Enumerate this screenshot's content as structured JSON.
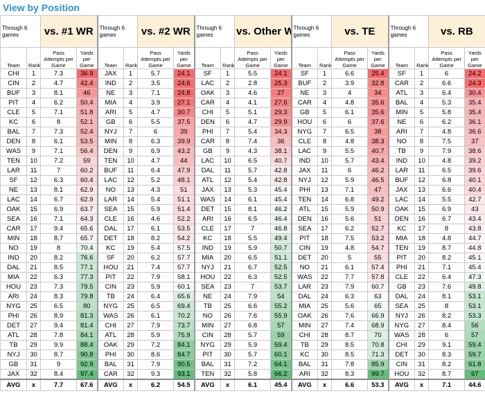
{
  "header": {
    "title": "View by Position"
  },
  "sections": [
    {
      "through": "Through 6 games",
      "title": "vs. #1 WR",
      "columns": [
        "Team",
        "Rank",
        "Pass Attempts per Game",
        "Yards per Game"
      ],
      "rows": [
        [
          "CHI",
          1,
          7.3,
          36.9
        ],
        [
          "CIN",
          2,
          4.7,
          42.4
        ],
        [
          "BUF",
          3,
          8.1,
          46
        ],
        [
          "PIT",
          4,
          6.2,
          50.4
        ],
        [
          "CLE",
          5,
          7.1,
          51.8
        ],
        [
          "KC",
          6,
          8,
          52.1
        ],
        [
          "BAL",
          7,
          7.3,
          52.4
        ],
        [
          "DEN",
          8,
          6.1,
          53.5
        ],
        [
          "WAS",
          9,
          7.1,
          56.4
        ],
        [
          "TEN",
          10,
          7.2,
          59
        ],
        [
          "LAR",
          11,
          7,
          60.2
        ],
        [
          "SF",
          12,
          6.3,
          60.4
        ],
        [
          "NE",
          13,
          8.1,
          62.9
        ],
        [
          "LAC",
          14,
          6.7,
          62.9
        ],
        [
          "OAK",
          15,
          6.9,
          63.7
        ],
        [
          "SEA",
          16,
          7.1,
          64.3
        ],
        [
          "CAR",
          17,
          9.4,
          65.6
        ],
        [
          "MIN",
          18,
          8.7,
          65.7
        ],
        [
          "NO",
          19,
          8,
          70.4
        ],
        [
          "IND",
          20,
          8.2,
          76.6
        ],
        [
          "DAL",
          21,
          8.5,
          77.1
        ],
        [
          "MIA",
          22,
          6.3,
          77.3
        ],
        [
          "HOU",
          23,
          7.3,
          79.5
        ],
        [
          "ARI",
          24,
          8.3,
          79.8
        ],
        [
          "NYG",
          25,
          6.5,
          80
        ],
        [
          "PHI",
          26,
          8.9,
          81.3
        ],
        [
          "DET",
          27,
          9.4,
          81.4
        ],
        [
          "ATL",
          28,
          7.8,
          84.1
        ],
        [
          "TB",
          29,
          9.9,
          88.4
        ],
        [
          "NYJ",
          30,
          8.7,
          90.8
        ],
        [
          "GB",
          31,
          9,
          92.9
        ],
        [
          "JAX",
          32,
          8.4,
          97.4
        ]
      ],
      "avg": [
        "AVG",
        "x",
        7.7,
        67.6
      ]
    },
    {
      "through": "Through 6 games",
      "title": "vs. #2 WR",
      "columns": [
        "Team",
        "Rank",
        "Pass Attempts per Game",
        "Yards per Game"
      ],
      "rows": [
        [
          "JAX",
          1,
          5.7,
          24.1
        ],
        [
          "IND",
          2,
          3.5,
          24.6
        ],
        [
          "NE",
          3,
          7.1,
          24.8
        ],
        [
          "MIA",
          4,
          3.9,
          27.1
        ],
        [
          "ARI",
          5,
          4.7,
          30.7
        ],
        [
          "GB",
          6,
          5.5,
          37.5
        ],
        [
          "NYJ",
          7,
          6,
          39
        ],
        [
          "MIN",
          8,
          6.3,
          39.9
        ],
        [
          "DEN",
          9,
          6.9,
          43.2
        ],
        [
          "TEN",
          10,
          4.7,
          44
        ],
        [
          "BUF",
          11,
          6.4,
          47.9
        ],
        [
          "LAC",
          12,
          5.2,
          48.1
        ],
        [
          "NO",
          13,
          4.3,
          51
        ],
        [
          "LAR",
          14,
          5.4,
          51.1
        ],
        [
          "SEA",
          15,
          5.9,
          51.4
        ],
        [
          "CLE",
          16,
          4.6,
          52.2
        ],
        [
          "DAL",
          17,
          6.1,
          53.5
        ],
        [
          "DET",
          18,
          8.2,
          54.2
        ],
        [
          "KC",
          19,
          5.4,
          57.5
        ],
        [
          "SF",
          20,
          6.2,
          57.7
        ],
        [
          "HOU",
          21,
          7.4,
          57.7
        ],
        [
          "PIT",
          22,
          7.9,
          58.1
        ],
        [
          "CIN",
          23,
          5.9,
          60.1
        ],
        [
          "TB",
          24,
          6.4,
          65.6
        ],
        [
          "NYG",
          25,
          6.5,
          69.4
        ],
        [
          "WAS",
          26,
          6.1,
          70.2
        ],
        [
          "CHI",
          27,
          7.9,
          73.7
        ],
        [
          "ATL",
          28,
          5.9,
          75.9
        ],
        [
          "OAK",
          29,
          7.2,
          84.1
        ],
        [
          "PHI",
          30,
          8.6,
          84.7
        ],
        [
          "BAL",
          31,
          7.9,
          90.5
        ],
        [
          "CAR",
          32,
          9.3,
          93.1
        ]
      ],
      "avg": [
        "AVG",
        "x",
        6.2,
        54.5
      ]
    },
    {
      "through": "Through 6 games",
      "title": "vs. Other WR",
      "columns": [
        "Team",
        "Rank",
        "Pass Attempts per Game",
        "Yards per Game"
      ],
      "rows": [
        [
          "SF",
          1,
          5.5,
          24.1
        ],
        [
          "LAC",
          2,
          2.8,
          25.3
        ],
        [
          "OAK",
          3,
          4.6,
          27
        ],
        [
          "CAR",
          4,
          4.1,
          27.6
        ],
        [
          "CHI",
          5,
          5.1,
          29.3
        ],
        [
          "DEN",
          6,
          4.7,
          29.9
        ],
        [
          "PHI",
          7,
          5.4,
          34.3
        ],
        [
          "CAR",
          8,
          7.4,
          36
        ],
        [
          "GB",
          9,
          4.3,
          38.1
        ],
        [
          "LAC",
          10,
          6.5,
          40.7
        ],
        [
          "DAL",
          11,
          5.7,
          42.8
        ],
        [
          "ATL",
          12,
          5.4,
          42.8
        ],
        [
          "JAX",
          13,
          5.3,
          45.4
        ],
        [
          "WAS",
          14,
          6.1,
          45.4
        ],
        [
          "DET",
          15,
          8.1,
          46.2
        ],
        [
          "ARI",
          16,
          6.5,
          46.4
        ],
        [
          "CLE",
          17,
          7,
          46.8
        ],
        [
          "KC",
          18,
          5.5,
          49.4
        ],
        [
          "IND",
          19,
          5.9,
          50.7
        ],
        [
          "MIA",
          20,
          6.5,
          51.1
        ],
        [
          "NYJ",
          21,
          6.7,
          52.5
        ],
        [
          "HOU",
          22,
          6.3,
          52.5
        ],
        [
          "SEA",
          23,
          7,
          53.7
        ],
        [
          "NE",
          24,
          7.9,
          54
        ],
        [
          "TB",
          25,
          6.6,
          55.2
        ],
        [
          "NO",
          26,
          7.6,
          55.9
        ],
        [
          "MIN",
          27,
          6.8,
          57
        ],
        [
          "CIN",
          28,
          5.7,
          59
        ],
        [
          "NYG",
          29,
          5.9,
          59.4
        ],
        [
          "PIT",
          30,
          5.7,
          60.1
        ],
        [
          "BAL",
          31,
          7.2,
          64.1
        ],
        [
          "TEN",
          32,
          5.8,
          66.2
        ]
      ],
      "avg": [
        "AVG",
        "x",
        6.1,
        45.4
      ]
    },
    {
      "through": "Through 6 games",
      "title": "vs. TE",
      "columns": [
        "Team",
        "Rank",
        "Pass Attempts per Game",
        "Yards per Game"
      ],
      "rows": [
        [
          "SF",
          1,
          6.6,
          25.4
        ],
        [
          "BUF",
          2,
          3.9,
          32.8
        ],
        [
          "NE",
          3,
          4,
          34
        ],
        [
          "CAR",
          4,
          4.8,
          35.6
        ],
        [
          "GB",
          5,
          6.1,
          35.6
        ],
        [
          "HOU",
          6,
          6,
          37.6
        ],
        [
          "NYG",
          7,
          6.5,
          38
        ],
        [
          "CLE",
          8,
          4.8,
          38.3
        ],
        [
          "LAC",
          9,
          5.5,
          40.7
        ],
        [
          "IND",
          10,
          5.7,
          43.4
        ],
        [
          "JAX",
          11,
          6,
          46.2
        ],
        [
          "NYJ",
          12,
          5.9,
          46.5
        ],
        [
          "PHI",
          13,
          7.1,
          47
        ],
        [
          "TEN",
          14,
          6.8,
          49.2
        ],
        [
          "ATL",
          15,
          5.9,
          50.9
        ],
        [
          "DEN",
          16,
          5.6,
          51
        ],
        [
          "SEA",
          17,
          6.2,
          52.7
        ],
        [
          "PIT",
          18,
          7.5,
          53.2
        ],
        [
          "CIN",
          19,
          4.8,
          54.7
        ],
        [
          "DET",
          20,
          5,
          55
        ],
        [
          "NO",
          21,
          6.1,
          57.4
        ],
        [
          "WAS",
          22,
          7.7,
          57.8
        ],
        [
          "LAR",
          23,
          7.9,
          60.7
        ],
        [
          "DAL",
          24,
          6.3,
          63
        ],
        [
          "MIA",
          25,
          5.6,
          65
        ],
        [
          "OAK",
          26,
          7.6,
          66.9
        ],
        [
          "MIN",
          27,
          7.4,
          68.9
        ],
        [
          "CHI",
          28,
          8.7,
          70
        ],
        [
          "TB",
          29,
          8.5,
          70.8
        ],
        [
          "KC",
          30,
          8.5,
          71.3
        ],
        [
          "BAL",
          31,
          7.8,
          85.9
        ],
        [
          "ARI",
          32,
          8.3,
          99.7
        ]
      ],
      "avg": [
        "AVG",
        "x",
        6.6,
        53.3
      ]
    },
    {
      "through": "Through 6 games",
      "title": "vs. RB",
      "columns": [
        "Team",
        "Rank",
        "Pass Attempts per Game",
        "Yards per Game"
      ],
      "rows": [
        [
          "SF",
          1,
          6,
          24.2
        ],
        [
          "CAR",
          2,
          6.6,
          24.3
        ],
        [
          "ATL",
          3,
          6.4,
          30.4
        ],
        [
          "BAL",
          4,
          5.3,
          35.4
        ],
        [
          "MIN",
          5,
          5.8,
          35.4
        ],
        [
          "NE",
          6,
          6.2,
          36.1
        ],
        [
          "ARI",
          7,
          4.8,
          36.6
        ],
        [
          "NO",
          8,
          7.5,
          37
        ],
        [
          "TB",
          9,
          7.9,
          38.6
        ],
        [
          "IND",
          10,
          4.8,
          39.2
        ],
        [
          "LAR",
          11,
          6.5,
          39.6
        ],
        [
          "BUF",
          12,
          6.8,
          40.1
        ],
        [
          "JAX",
          13,
          6.6,
          40.4
        ],
        [
          "LAC",
          14,
          5.5,
          42.7
        ],
        [
          "OAK",
          15,
          6.9,
          43
        ],
        [
          "DEN",
          16,
          6.7,
          43.4
        ],
        [
          "KC",
          17,
          8,
          43.8
        ],
        [
          "MIA",
          18,
          4.8,
          44.7
        ],
        [
          "TEN",
          19,
          8.7,
          44.8
        ],
        [
          "PIT",
          20,
          8.2,
          45.1
        ],
        [
          "PHI",
          21,
          7.1,
          45.4
        ],
        [
          "CLE",
          22,
          6.4,
          47.3
        ],
        [
          "GB",
          23,
          7.6,
          49.8
        ],
        [
          "DAL",
          24,
          8.1,
          53.1
        ],
        [
          "SEA",
          25,
          8,
          53.1
        ],
        [
          "NYJ",
          26,
          8.2,
          53.3
        ],
        [
          "NYG",
          27,
          8.4,
          56
        ],
        [
          "WAS",
          28,
          6,
          57
        ],
        [
          "CHI",
          29,
          9.1,
          59.4
        ],
        [
          "DET",
          30,
          8.3,
          59.7
        ],
        [
          "CIN",
          31,
          8.2,
          61.8
        ],
        [
          "HOU",
          32,
          8.7,
          67
        ]
      ],
      "avg": [
        "AVG",
        "x",
        7.1,
        44.6
      ]
    }
  ]
}
